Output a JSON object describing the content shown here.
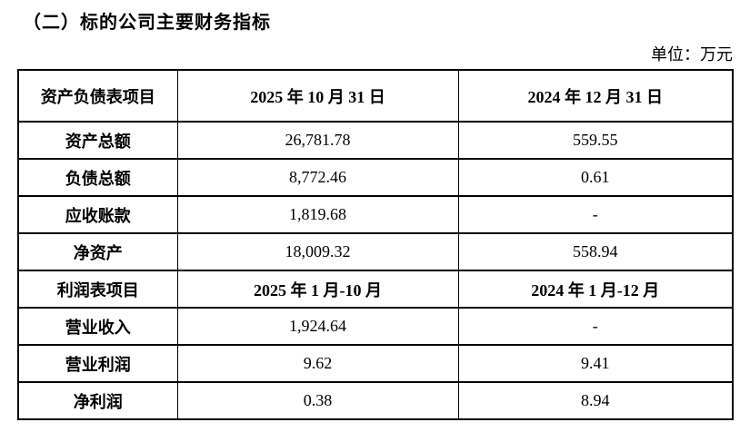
{
  "page": {
    "title": "（二）标的公司主要财务指标",
    "unit_label": "单位：万元"
  },
  "colors": {
    "background": "#ffffff",
    "text": "#000000",
    "table_border": "#000000"
  },
  "table": {
    "header": [
      "资产负债表项目",
      "2025 年 10 月 31 日",
      "2024 年 12 月 31 日"
    ],
    "rows": [
      {
        "section_header": false,
        "cells": [
          "资产总额",
          "26,781.78",
          "559.55"
        ]
      },
      {
        "section_header": false,
        "cells": [
          "负债总额",
          "8,772.46",
          "0.61"
        ]
      },
      {
        "section_header": false,
        "cells": [
          "应收账款",
          "1,819.68",
          "-"
        ]
      },
      {
        "section_header": false,
        "cells": [
          "净资产",
          "18,009.32",
          "558.94"
        ]
      },
      {
        "section_header": true,
        "cells": [
          "利润表项目",
          "2025 年 1 月-10 月",
          "2024 年 1 月-12 月"
        ]
      },
      {
        "section_header": false,
        "cells": [
          "营业收入",
          "1,924.64",
          "-"
        ]
      },
      {
        "section_header": false,
        "cells": [
          "营业利润",
          "9.62",
          "9.41"
        ]
      },
      {
        "section_header": false,
        "cells": [
          "净利润",
          "0.38",
          "8.94"
        ]
      }
    ]
  }
}
